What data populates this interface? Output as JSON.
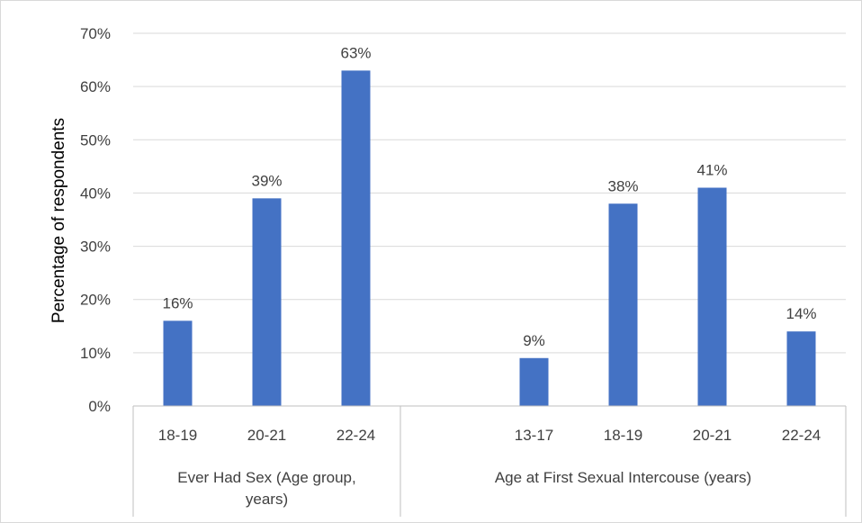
{
  "chart_data": {
    "type": "bar",
    "ylabel": "Percentage of respondents",
    "ylim": [
      0,
      70
    ],
    "yticks": [
      "0%",
      "10%",
      "20%",
      "30%",
      "40%",
      "50%",
      "60%",
      "70%"
    ],
    "grid": true,
    "groups": [
      {
        "label_lines": [
          "Ever Had Sex (Age group,",
          "years)"
        ],
        "categories": [
          "18-19",
          "20-21",
          "22-24"
        ],
        "values": [
          16,
          39,
          63
        ],
        "data_labels": [
          "16%",
          "39%",
          "63%"
        ]
      },
      {
        "label_lines": [
          "Age at First Sexual Intercouse (years)"
        ],
        "categories": [
          "",
          "13-17",
          "18-19",
          "20-21",
          "22-24"
        ],
        "values": [
          null,
          9,
          38,
          41,
          14
        ],
        "data_labels": [
          "",
          "9%",
          "38%",
          "41%",
          "14%"
        ]
      }
    ],
    "colors": {
      "bar": "#4472C4",
      "grid": "#D9D9D9",
      "axis": "#BFBFBF"
    }
  }
}
